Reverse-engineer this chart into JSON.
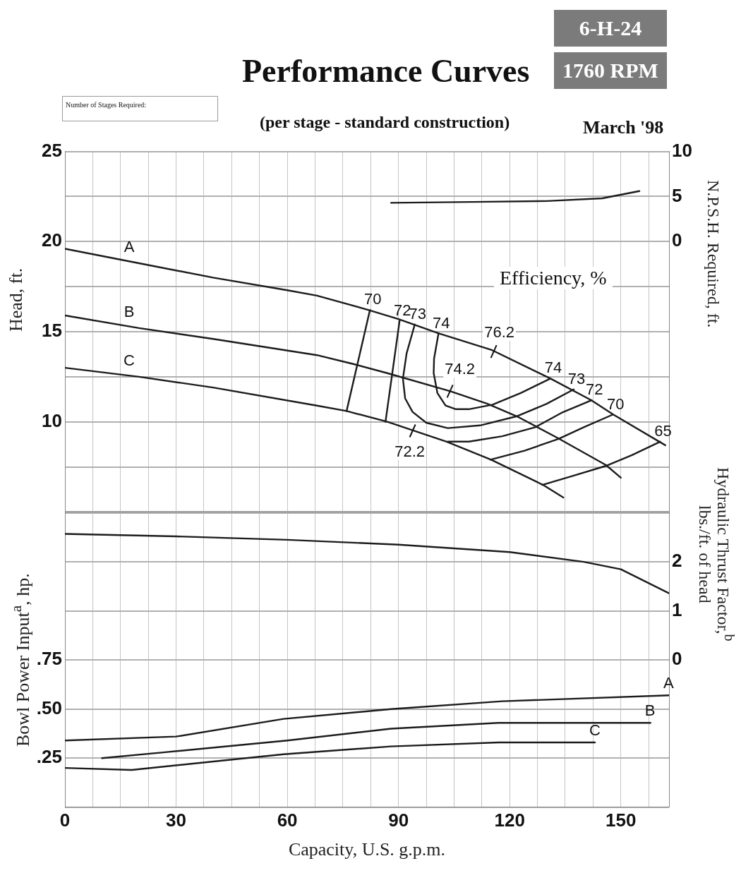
{
  "chart_data": [
    {
      "type": "line",
      "title": "Performance Curves",
      "subtitle": "(per stage - standard construction)",
      "ylabel": "Head, ft.",
      "y2label": "N.P.S.H. Required, ft.",
      "annotations": [
        "6-H-24",
        "1760 RPM",
        "Number of Stages Required:",
        "March '98",
        "Efficiency, %",
        {
          "text": "76.2",
          "x": 115.7,
          "y": 13.9
        },
        {
          "text": "74.2",
          "x": 103.9,
          "y": 11.7
        },
        {
          "text": "72.2",
          "x": 93.8,
          "y": 9.5
        }
      ],
      "xlim": [
        0,
        163
      ],
      "xticks": [
        0,
        {
          "value": 7.5,
          "label": null
        },
        {
          "value": 15,
          "label": null
        },
        {
          "value": 22.5,
          "label": null
        },
        30,
        {
          "value": 37.5,
          "label": null
        },
        {
          "value": 45,
          "label": null
        },
        {
          "value": 52.5,
          "label": null
        },
        60,
        {
          "value": 67.5,
          "label": null
        },
        {
          "value": 75,
          "label": null
        },
        {
          "value": 82.5,
          "label": null
        },
        90,
        {
          "value": 97.5,
          "label": null
        },
        {
          "value": 105,
          "label": null
        },
        {
          "value": 112.5,
          "label": null
        },
        120,
        {
          "value": 127.5,
          "label": null
        },
        {
          "value": 135,
          "label": null
        },
        {
          "value": 142.5,
          "label": null
        },
        150,
        {
          "value": 157.5,
          "label": null
        }
      ],
      "ylim": [
        5,
        25
      ],
      "yticks": [
        {
          "value": 5,
          "label": null
        },
        {
          "value": 7.5,
          "label": null
        },
        10,
        {
          "value": 12.5,
          "label": null
        },
        15,
        {
          "value": 17.5,
          "label": null
        },
        20,
        {
          "value": 22.5,
          "label": null
        },
        25
      ],
      "y2lim": [
        -30,
        10
      ],
      "y2ticks": [
        0,
        5,
        10
      ],
      "grid": true,
      "tick_labels": "y",
      "series": [
        {
          "name": "A",
          "color": "#1c1c1c",
          "x": [
            0,
            20,
            40,
            60,
            68,
            82,
            90,
            101,
            115,
            131,
            142,
            148,
            162
          ],
          "values": [
            19.6,
            18.8,
            18.0,
            17.3,
            17.0,
            16.2,
            15.7,
            14.9,
            14.0,
            12.4,
            11.2,
            10.4,
            8.7
          ]
        },
        {
          "name": "B",
          "color": "#1c1c1c",
          "x": [
            0,
            20,
            40,
            68,
            78,
            87,
            104,
            114,
            122,
            133,
            146,
            150
          ],
          "values": [
            15.9,
            15.2,
            14.6,
            13.7,
            13.2,
            12.7,
            11.7,
            11.0,
            10.3,
            9.1,
            7.6,
            6.9
          ]
        },
        {
          "name": "C",
          "color": "#1c1c1c",
          "x": [
            0,
            20,
            40,
            68,
            76,
            87,
            103,
            115,
            129,
            134.5
          ],
          "values": [
            13.0,
            12.5,
            11.9,
            10.9,
            10.6,
            10.0,
            8.9,
            7.9,
            6.5,
            5.8
          ]
        },
        {
          "name": "70",
          "color": "#1c1c1c",
          "x": [
            82.3,
            76.0
          ],
          "values": [
            16.2,
            10.6
          ]
        },
        {
          "name": "70",
          "color": "#1c1c1c",
          "x": [
            147.8,
            140,
            133.2,
            124,
            114.8
          ],
          "values": [
            10.4,
            9.7,
            9.05,
            8.4,
            7.9
          ]
        },
        {
          "name": "72",
          "color": "#1c1c1c",
          "x": [
            90.3,
            86.5
          ],
          "values": [
            15.6,
            10.0
          ]
        },
        {
          "name": "72",
          "color": "#1c1c1c",
          "x": [
            142.1,
            134,
            126.9,
            118,
            109,
            103.3
          ],
          "values": [
            11.2,
            10.5,
            9.7,
            9.2,
            8.9,
            8.9
          ]
        },
        {
          "name": "73",
          "color": "#1c1c1c",
          "x": [
            94.4,
            92.2,
            91.2,
            91.8,
            93.8,
            97.5,
            103.3,
            112,
            121.8,
            130,
            137.3
          ],
          "values": [
            15.4,
            13.8,
            12.4,
            11.3,
            10.55,
            9.95,
            9.65,
            9.8,
            10.3,
            11.0,
            11.8
          ]
        },
        {
          "name": "74",
          "color": "#1c1c1c",
          "x": [
            100.8,
            99.6,
            99.5,
            100.5,
            102.7,
            105.5,
            109.0,
            115.4,
            123,
            131.0
          ],
          "values": [
            14.9,
            13.5,
            12.7,
            11.6,
            10.9,
            10.7,
            10.7,
            10.95,
            11.6,
            12.4
          ]
        },
        {
          "name": "65",
          "color": "#1c1c1c",
          "x": [
            160.6,
            153,
            145.9,
            137,
            128.8
          ],
          "values": [
            8.9,
            8.15,
            7.55,
            7.0,
            6.5
          ]
        },
        {
          "axis": "y2",
          "color": "#1c1c1c",
          "x": [
            88,
            110,
            130,
            145,
            155
          ],
          "values": [
            4.3,
            4.4,
            4.5,
            4.8,
            5.6
          ]
        }
      ]
    },
    {
      "type": "line",
      "xlabel": "Capacity, U.S. g.p.m.",
      "ylabel": "Bowl Power Input$^{a}$, hp.",
      "y2label": "Hydraulic Thrust Factor,$^{b}$\nlbs./ft. of head",
      "xlim": [
        0,
        163
      ],
      "xticks": [
        0,
        {
          "value": 7.5,
          "label": null
        },
        {
          "value": 15,
          "label": null
        },
        {
          "value": 22.5,
          "label": null
        },
        30,
        {
          "value": 37.5,
          "label": null
        },
        {
          "value": 45,
          "label": null
        },
        {
          "value": 52.5,
          "label": null
        },
        60,
        {
          "value": 67.5,
          "label": null
        },
        {
          "value": 75,
          "label": null
        },
        {
          "value": 82.5,
          "label": null
        },
        90,
        {
          "value": 97.5,
          "label": null
        },
        {
          "value": 105,
          "label": null
        },
        {
          "value": 112.5,
          "label": null
        },
        120,
        {
          "value": 127.5,
          "label": null
        },
        {
          "value": 135,
          "label": null
        },
        {
          "value": 142.5,
          "label": null
        },
        150,
        {
          "value": 157.5,
          "label": null
        }
      ],
      "ylim": [
        0,
        1.5
      ],
      "yticks": [
        {
          "value": 0,
          "label": null
        },
        {
          "value": 0.25,
          "label": ".25"
        },
        {
          "value": 0.5,
          "label": ".50"
        },
        {
          "value": 0.75,
          "label": ".75"
        },
        {
          "value": 1.0,
          "label": null
        },
        {
          "value": 1.25,
          "label": null
        },
        {
          "value": 1.5,
          "label": null
        }
      ],
      "y2lim": [
        -3,
        3
      ],
      "y2ticks": [
        0,
        1,
        2
      ],
      "grid": true,
      "series": [
        {
          "axis": "y2",
          "color": "#1c1c1c",
          "x": [
            0,
            30,
            60,
            90,
            120,
            140,
            150,
            163
          ],
          "values": [
            2.57,
            2.52,
            2.45,
            2.35,
            2.2,
            2.0,
            1.85,
            1.36
          ]
        },
        {
          "name": "A",
          "color": "#1c1c1c",
          "x": [
            0,
            30,
            59,
            88,
            118,
            163
          ],
          "values": [
            0.34,
            0.36,
            0.45,
            0.5,
            0.54,
            0.57
          ]
        },
        {
          "name": "B",
          "color": "#1c1c1c",
          "x": [
            10,
            27,
            60,
            88,
            117,
            158
          ],
          "values": [
            0.25,
            0.28,
            0.34,
            0.4,
            0.43,
            0.43
          ]
        },
        {
          "name": "C",
          "color": "#1c1c1c",
          "x": [
            0,
            18,
            59,
            88,
            117,
            143
          ],
          "values": [
            0.2,
            0.19,
            0.27,
            0.31,
            0.33,
            0.33
          ]
        }
      ]
    }
  ]
}
